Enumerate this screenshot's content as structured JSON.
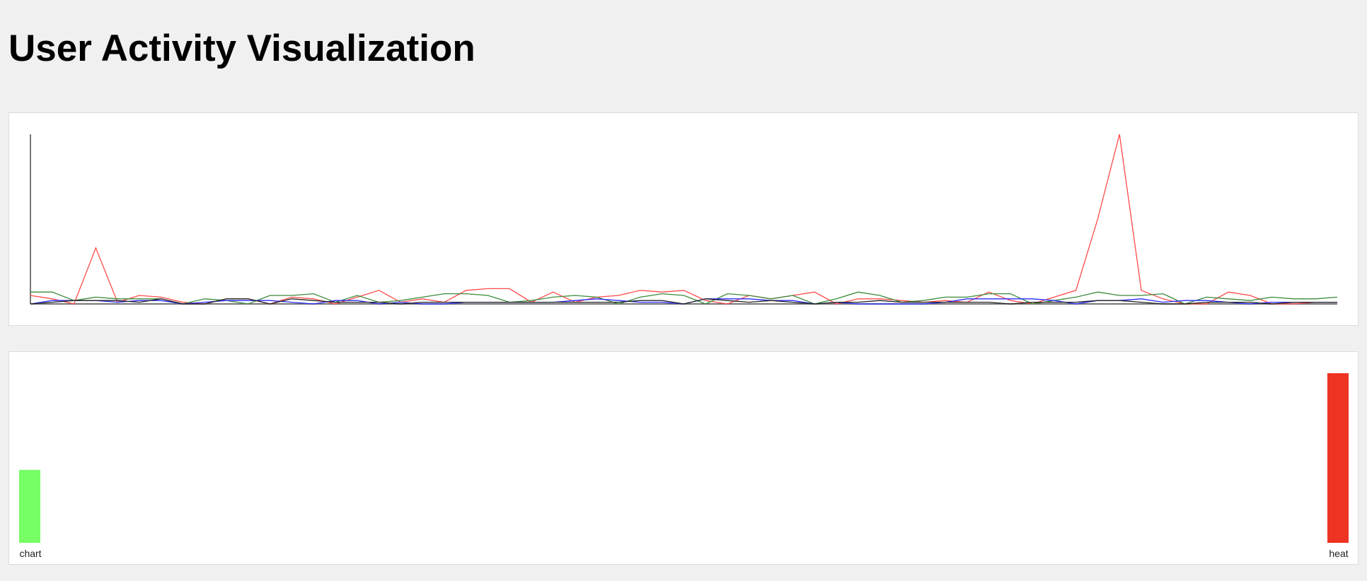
{
  "header": {
    "title": "User Activity Visualization"
  },
  "chart_data": [
    {
      "type": "line",
      "title": "",
      "xlabel": "",
      "ylabel": "",
      "ylim": [
        0,
        100
      ],
      "grid": false,
      "x": [
        0,
        1,
        2,
        3,
        4,
        5,
        6,
        7,
        8,
        9,
        10,
        11,
        12,
        13,
        14,
        15,
        16,
        17,
        18,
        19,
        20,
        21,
        22,
        23,
        24,
        25,
        26,
        27,
        28,
        29,
        30,
        31,
        32,
        33,
        34,
        35,
        36,
        37,
        38,
        39,
        40,
        41,
        42,
        43,
        44,
        45,
        46,
        47,
        48,
        49,
        50,
        51,
        52,
        53,
        54,
        55,
        56,
        57,
        58,
        59,
        60
      ],
      "series": [
        {
          "color": "#ff4a4a",
          "values": [
            5,
            3,
            0,
            33,
            1,
            5,
            4,
            1,
            0,
            3,
            3,
            0,
            4,
            3,
            0,
            4,
            8,
            1,
            3,
            1,
            8,
            9,
            9,
            1,
            7,
            1,
            4,
            5,
            8,
            7,
            8,
            2,
            0,
            5,
            3,
            5,
            7,
            0,
            3,
            3,
            2,
            1,
            2,
            1,
            7,
            2,
            0,
            4,
            8,
            50,
            100,
            8,
            3,
            0,
            0,
            7,
            5,
            0,
            0,
            1,
            1
          ]
        },
        {
          "color": "#3a8a3a",
          "values": [
            7,
            7,
            2,
            4,
            3,
            3,
            3,
            0,
            3,
            2,
            0,
            5,
            5,
            6,
            1,
            5,
            1,
            2,
            4,
            6,
            6,
            5,
            1,
            2,
            4,
            5,
            4,
            0,
            4,
            6,
            5,
            0,
            6,
            5,
            3,
            5,
            0,
            3,
            7,
            5,
            1,
            2,
            4,
            4,
            6,
            6,
            0,
            2,
            4,
            7,
            5,
            5,
            6,
            0,
            4,
            3,
            2,
            4,
            3,
            3,
            4
          ]
        },
        {
          "color": "#2a2aff",
          "values": [
            0,
            2,
            2,
            2,
            1,
            2,
            2,
            0,
            1,
            2,
            2,
            2,
            1,
            0,
            2,
            2,
            0,
            1,
            0,
            0,
            1,
            1,
            1,
            1,
            1,
            2,
            3,
            2,
            1,
            1,
            0,
            3,
            3,
            3,
            2,
            2,
            0,
            1,
            0,
            0,
            0,
            0,
            1,
            3,
            3,
            3,
            3,
            2,
            0,
            2,
            2,
            3,
            1,
            2,
            2,
            1,
            0,
            1,
            1,
            1,
            1
          ]
        },
        {
          "color": "#222222",
          "values": [
            0,
            1,
            2,
            2,
            2,
            1,
            3,
            0,
            0,
            3,
            3,
            0,
            3,
            2,
            1,
            1,
            1,
            0,
            1,
            1,
            1,
            1,
            1,
            1,
            1,
            1,
            1,
            1,
            2,
            2,
            0,
            3,
            2,
            1,
            2,
            1,
            0,
            1,
            1,
            2,
            1,
            1,
            1,
            1,
            1,
            0,
            1,
            1,
            1,
            2,
            2,
            1,
            0,
            0,
            1,
            1,
            1,
            0,
            1,
            1,
            1
          ]
        }
      ]
    },
    {
      "type": "bar",
      "title": "",
      "xlabel": "",
      "ylabel": "",
      "ylim": [
        0,
        100
      ],
      "categories": [
        "chart",
        "heat"
      ],
      "values": [
        43,
        100
      ],
      "colors": [
        "#77ff66",
        "#ee3322"
      ]
    }
  ]
}
